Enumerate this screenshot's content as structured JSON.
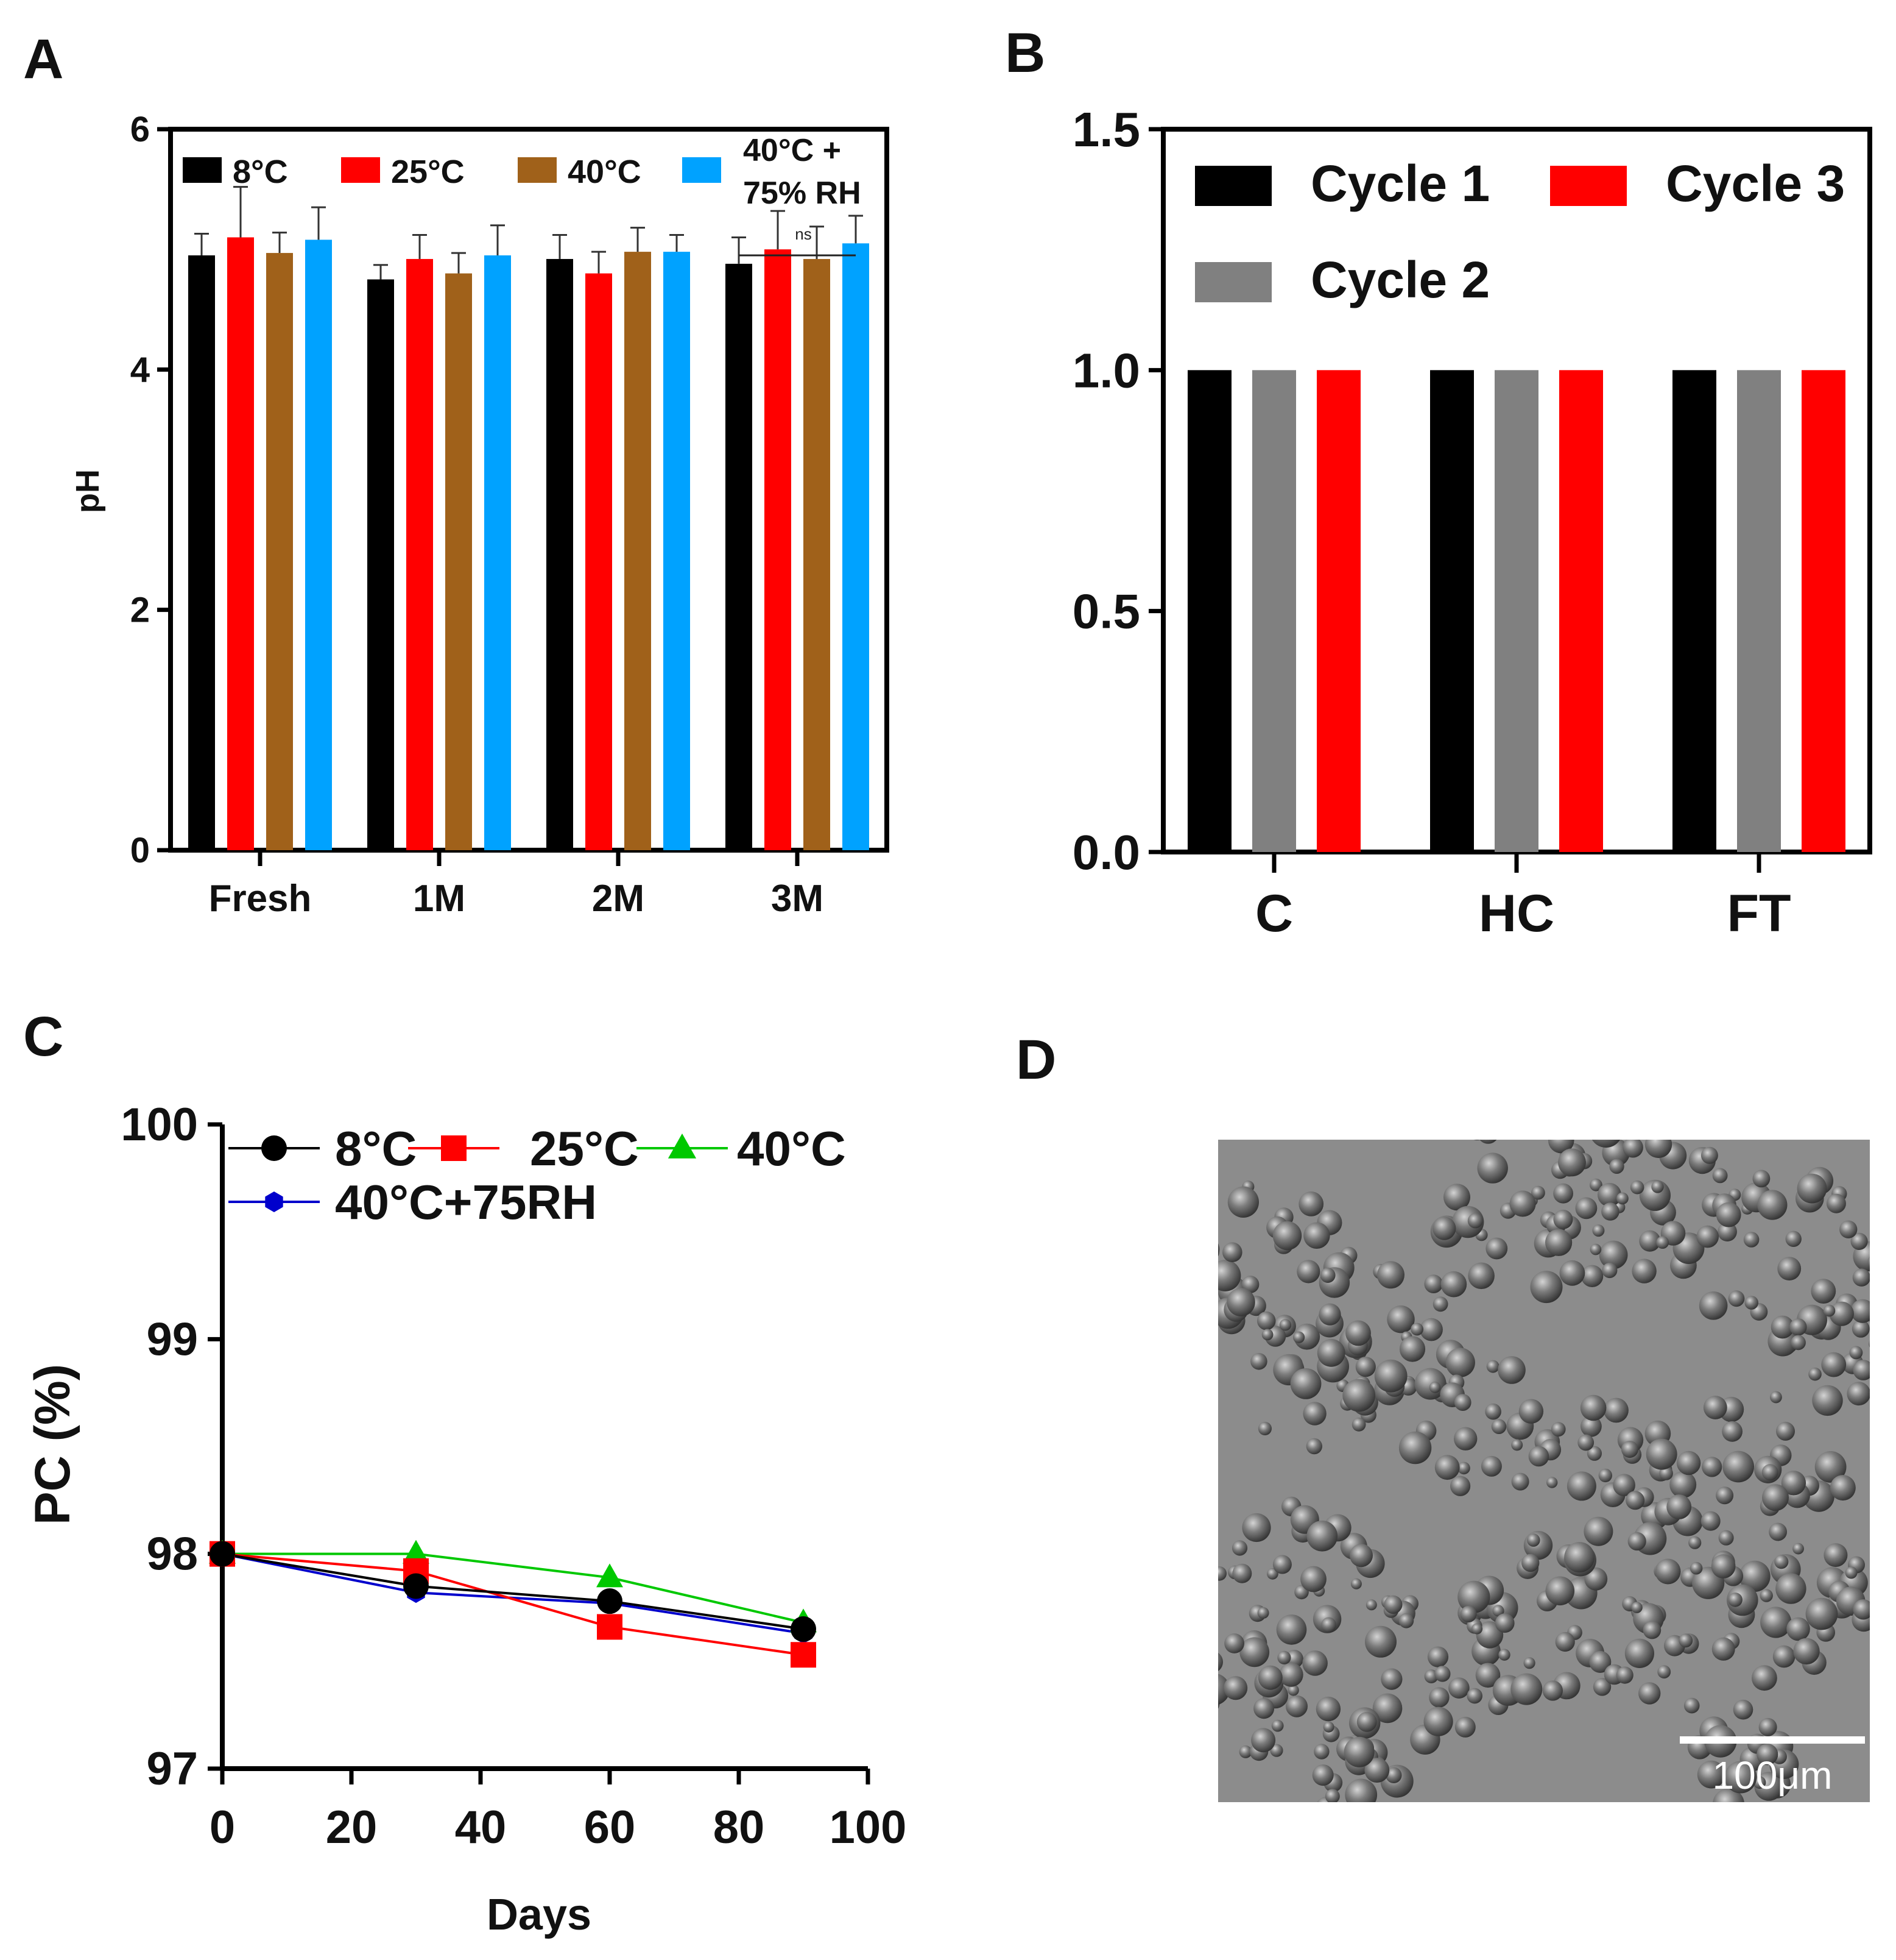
{
  "panels": {
    "a": {
      "letter": "A"
    },
    "b": {
      "letter": "B"
    },
    "c": {
      "letter": "C"
    },
    "d": {
      "letter": "D",
      "scale_bar_label": "100μm",
      "alt": "micrograph of spherical droplets"
    }
  },
  "chart_data": [
    {
      "id": "A",
      "type": "bar",
      "title": "",
      "xlabel": "",
      "ylabel": "pH",
      "ylim": [
        0,
        6
      ],
      "yticks": [
        "0",
        "2",
        "4",
        "6"
      ],
      "categories": [
        "Fresh",
        "1M",
        "2M",
        "3M"
      ],
      "series": [
        {
          "name": "8°C",
          "color": "#000000",
          "values": [
            4.95,
            4.75,
            4.92,
            4.88
          ],
          "errors": [
            0.18,
            0.12,
            0.2,
            0.22
          ]
        },
        {
          "name": "25°C",
          "color": "#ff0000",
          "values": [
            5.1,
            4.92,
            4.8,
            5.0
          ],
          "errors": [
            0.42,
            0.2,
            0.18,
            0.32
          ]
        },
        {
          "name": "40°C",
          "color": "#a0611a",
          "values": [
            4.97,
            4.8,
            4.98,
            4.92
          ],
          "errors": [
            0.17,
            0.17,
            0.2,
            0.27
          ]
        },
        {
          "name": "40°C +\n75% RH",
          "color": "#00a2ff",
          "values": [
            5.08,
            4.95,
            4.98,
            5.05
          ],
          "errors": [
            0.27,
            0.25,
            0.14,
            0.23
          ]
        }
      ],
      "annotation": {
        "text": "ns",
        "category": "3M"
      },
      "legend_position": "top"
    },
    {
      "id": "B",
      "type": "bar",
      "title": "",
      "xlabel": "",
      "ylabel": "",
      "ylim": [
        0,
        1.5
      ],
      "yticks": [
        "0.0",
        "0.5",
        "1.0",
        "1.5"
      ],
      "categories": [
        "C",
        "HC",
        "FT"
      ],
      "series": [
        {
          "name": "Cycle 1",
          "color": "#000000",
          "values": [
            1.0,
            1.0,
            1.0
          ]
        },
        {
          "name": "Cycle 2",
          "color": "#808080",
          "values": [
            1.0,
            1.0,
            1.0
          ]
        },
        {
          "name": "Cycle 3",
          "color": "#ff0000",
          "values": [
            1.0,
            1.0,
            1.0
          ]
        }
      ],
      "legend_position": "top-left"
    },
    {
      "id": "C",
      "type": "line",
      "title": "",
      "xlabel": "Days",
      "ylabel": "PC (%)",
      "xlim": [
        0,
        100
      ],
      "ylim": [
        97,
        100
      ],
      "xticks": [
        "0",
        "20",
        "40",
        "60",
        "80",
        "100"
      ],
      "yticks": [
        "97",
        "98",
        "99",
        "100"
      ],
      "x": [
        0,
        30,
        60,
        90
      ],
      "series": [
        {
          "name": "8°C",
          "color": "#000000",
          "marker": "circle",
          "values": [
            98.0,
            97.85,
            97.78,
            97.65
          ]
        },
        {
          "name": "25°C",
          "color": "#ff0000",
          "marker": "square",
          "values": [
            98.0,
            97.92,
            97.66,
            97.53
          ]
        },
        {
          "name": "40°C",
          "color": "#00c800",
          "marker": "triangle",
          "values": [
            98.0,
            98.0,
            97.89,
            97.68
          ]
        },
        {
          "name": "40°C+75RH",
          "color": "#0000cc",
          "marker": "hexagon",
          "values": [
            98.0,
            97.82,
            97.77,
            97.63
          ]
        }
      ],
      "legend_position": "top"
    }
  ]
}
